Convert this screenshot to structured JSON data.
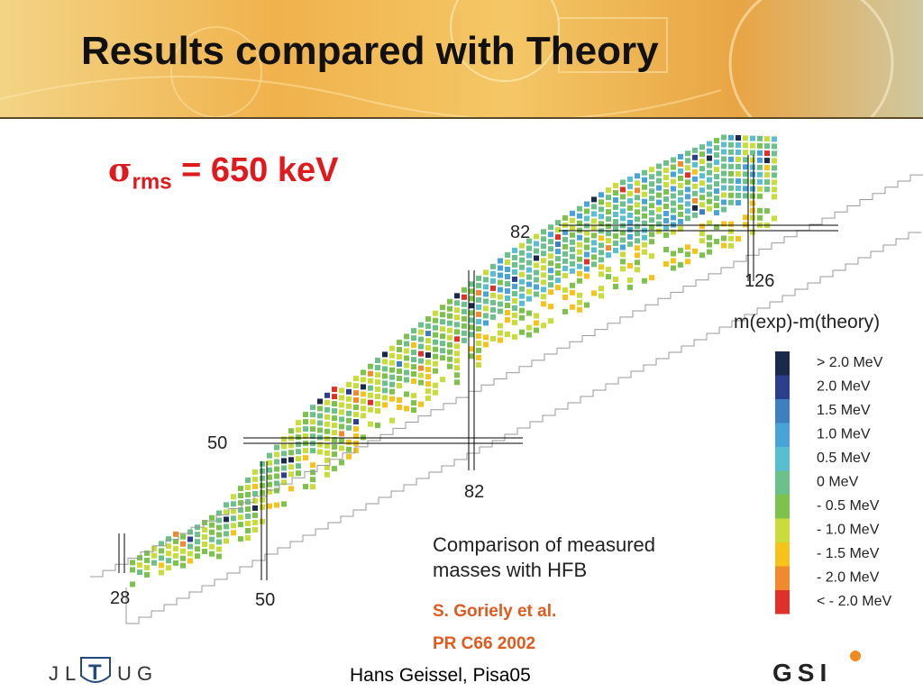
{
  "slide": {
    "title": "Results compared with Theory",
    "sigma": {
      "symbol": "σ",
      "subscript": "rms",
      "value_text": " = 650 keV"
    },
    "reference": {
      "author": "S. Goriely et al.",
      "journal": "PR C66  2002"
    },
    "footer": "Hans Geissel,  Pisa05",
    "logo_left": {
      "letters": [
        "J",
        "L",
        "T",
        "U",
        "G"
      ]
    },
    "logo_right": {
      "text": "GSI"
    }
  },
  "chart_data": {
    "type": "heatmap",
    "title": "",
    "xlabel": "",
    "ylabel": "",
    "legend_title": "m(exp)-m(theory)",
    "caption": [
      "Comparison of measured",
      "masses with HFB"
    ],
    "magic_labels": {
      "Z50": "50",
      "Z82": "82",
      "N28": "28",
      "N50": "50",
      "N82": "82",
      "N126": "126"
    },
    "legend": [
      {
        "label": "> 2.0 MeV",
        "color": "#1b2a4a"
      },
      {
        "label": "2.0 MeV",
        "color": "#2c3e8c"
      },
      {
        "label": "1.5 MeV",
        "color": "#3f7fc0"
      },
      {
        "label": "1.0 MeV",
        "color": "#4aa3d6"
      },
      {
        "label": "0.5 MeV",
        "color": "#58bed0"
      },
      {
        "label": "0 MeV",
        "color": "#6cc08a"
      },
      {
        "label": "- 0.5 MeV",
        "color": "#7cc24d"
      },
      {
        "label": "- 1.0 MeV",
        "color": "#c8dc3c"
      },
      {
        "label": "- 1.5 MeV",
        "color": "#f4c31c"
      },
      {
        "label": "- 2.0 MeV",
        "color": "#ef8a2e"
      },
      {
        "label": "< - 2.0 MeV",
        "color": "#e0302a"
      }
    ]
  }
}
